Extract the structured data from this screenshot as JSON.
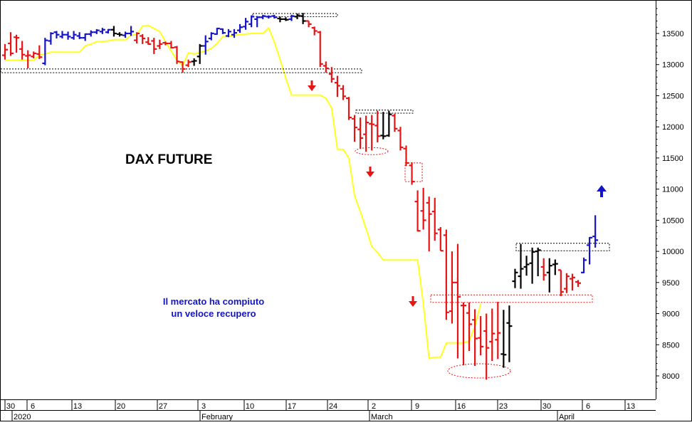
{
  "chart_data": {
    "type": "bar",
    "subtype": "ohlc",
    "title": "DAX FUTURE",
    "annotation": "Il mercato ha compiuto\nun veloce recupero",
    "y_axis": {
      "position": "right",
      "ylim": [
        7700,
        14650
      ],
      "ticks": [
        8000,
        8500,
        9000,
        9500,
        10000,
        10500,
        11000,
        11500,
        12000,
        12500,
        13000,
        13500
      ]
    },
    "x_axis": {
      "day_ticks": [
        "30",
        "6",
        "13",
        "20",
        "27",
        "3",
        "10",
        "17",
        "24",
        "2",
        "9",
        "16",
        "23",
        "30",
        "6",
        "13"
      ],
      "month_labels": [
        "2020",
        "February",
        "March",
        "April"
      ]
    },
    "grid": false,
    "colors": {
      "up": "#1414c8",
      "down": "#e81414",
      "neutral": "#000000",
      "trailing_stop": "#ffff20",
      "arrow_down": "#e81414",
      "arrow_up": "#1414c8"
    },
    "trailing_stop": [
      13070,
      13070,
      13070,
      13070,
      13070,
      13070,
      13150,
      13170,
      13200,
      13200,
      13200,
      13200,
      13200,
      13200,
      13300,
      13330,
      13370,
      13370,
      13380,
      13400,
      13400,
      13400,
      13470,
      13480,
      13620,
      13630,
      13580,
      13530,
      13370,
      13220,
      13070,
      12980,
      13190,
      13170,
      13190,
      13220,
      13260,
      13340,
      13450,
      13450,
      13470,
      13480,
      13490,
      13500,
      13500,
      13500,
      13590,
      13360,
      13080,
      12780,
      12510,
      12510,
      12510,
      12510,
      12510,
      12510,
      12460,
      12300,
      11640,
      11640,
      11500,
      10890,
      10640,
      10360,
      10080,
      9980,
      9860,
      9860,
      9860,
      9860,
      9860,
      9860,
      9860,
      9150,
      8280,
      8300,
      8300,
      8530,
      8530,
      8530,
      8530,
      8560,
      8800,
      9160
    ],
    "bars": [
      {
        "open": 13150,
        "high": 13330,
        "low": 13080,
        "close": 13240,
        "color": "down"
      },
      {
        "open": 13340,
        "high": 13520,
        "low": 13140,
        "close": 13180,
        "color": "down"
      },
      {
        "open": 13440,
        "high": 13480,
        "low": 13190,
        "close": 13430,
        "color": "down"
      },
      {
        "open": 13250,
        "high": 13380,
        "low": 13080,
        "close": 13160,
        "color": "down"
      },
      {
        "open": 13140,
        "high": 13230,
        "low": 12940,
        "close": 13150,
        "color": "down"
      },
      {
        "open": 13130,
        "high": 13210,
        "low": 13100,
        "close": 13180,
        "color": "down"
      },
      {
        "open": 13170,
        "high": 13310,
        "low": 13090,
        "close": 13120,
        "color": "down"
      },
      {
        "open": 13020,
        "high": 13430,
        "low": 12990,
        "close": 13390,
        "color": "up"
      },
      {
        "open": 13380,
        "high": 13520,
        "low": 13320,
        "close": 13500,
        "color": "up"
      },
      {
        "open": 13520,
        "high": 13540,
        "low": 13420,
        "close": 13480,
        "color": "up"
      },
      {
        "open": 13450,
        "high": 13540,
        "low": 13420,
        "close": 13480,
        "color": "up"
      },
      {
        "open": 13480,
        "high": 13530,
        "low": 13400,
        "close": 13450,
        "color": "up"
      },
      {
        "open": 13430,
        "high": 13540,
        "low": 13400,
        "close": 13480,
        "color": "up"
      },
      {
        "open": 13460,
        "high": 13520,
        "low": 13410,
        "close": 13430,
        "color": "up"
      },
      {
        "open": 13430,
        "high": 13500,
        "low": 13380,
        "close": 13490,
        "color": "up"
      },
      {
        "open": 13490,
        "high": 13550,
        "low": 13450,
        "close": 13520,
        "color": "up"
      },
      {
        "open": 13520,
        "high": 13570,
        "low": 13490,
        "close": 13550,
        "color": "up"
      },
      {
        "open": 13530,
        "high": 13590,
        "low": 13490,
        "close": 13560,
        "color": "up"
      },
      {
        "open": 13520,
        "high": 13570,
        "low": 13500,
        "close": 13560,
        "color": "up"
      },
      {
        "open": 13560,
        "high": 13620,
        "low": 13450,
        "close": 13500,
        "color": "neutral"
      },
      {
        "open": 13490,
        "high": 13520,
        "low": 13450,
        "close": 13480,
        "color": "neutral"
      },
      {
        "open": 13470,
        "high": 13530,
        "low": 13430,
        "close": 13500,
        "color": "up"
      },
      {
        "open": 13500,
        "high": 13620,
        "low": 13460,
        "close": 13530,
        "color": "up"
      },
      {
        "open": 13390,
        "high": 13520,
        "low": 13340,
        "close": 13500,
        "color": "down"
      },
      {
        "open": 13460,
        "high": 13490,
        "low": 13330,
        "close": 13420,
        "color": "down"
      },
      {
        "open": 13360,
        "high": 13440,
        "low": 13320,
        "close": 13330,
        "color": "down"
      },
      {
        "open": 13380,
        "high": 13430,
        "low": 13170,
        "close": 13250,
        "color": "down"
      },
      {
        "open": 13300,
        "high": 13400,
        "low": 13250,
        "close": 13330,
        "color": "down"
      },
      {
        "open": 13350,
        "high": 13370,
        "low": 13310,
        "close": 13340,
        "color": "down"
      },
      {
        "open": 13340,
        "high": 13380,
        "low": 13260,
        "close": 13270,
        "color": "down"
      },
      {
        "open": 13280,
        "high": 13300,
        "low": 13010,
        "close": 13050,
        "color": "down"
      },
      {
        "open": 13040,
        "high": 13050,
        "low": 12870,
        "close": 12930,
        "color": "down"
      },
      {
        "open": 12990,
        "high": 13080,
        "low": 12960,
        "close": 13040,
        "color": "down"
      },
      {
        "open": 13050,
        "high": 13100,
        "low": 12980,
        "close": 13060,
        "color": "neutral"
      },
      {
        "open": 13130,
        "high": 13330,
        "low": 13010,
        "close": 13300,
        "color": "neutral"
      },
      {
        "open": 13300,
        "high": 13470,
        "low": 13160,
        "close": 13370,
        "color": "up"
      },
      {
        "open": 13420,
        "high": 13520,
        "low": 13390,
        "close": 13500,
        "color": "up"
      },
      {
        "open": 13490,
        "high": 13590,
        "low": 13480,
        "close": 13580,
        "color": "up"
      },
      {
        "open": 13570,
        "high": 13580,
        "low": 13490,
        "close": 13510,
        "color": "up"
      },
      {
        "open": 13460,
        "high": 13570,
        "low": 13440,
        "close": 13530,
        "color": "up"
      },
      {
        "open": 13480,
        "high": 13570,
        "low": 13430,
        "close": 13510,
        "color": "up"
      },
      {
        "open": 13550,
        "high": 13650,
        "low": 13510,
        "close": 13600,
        "color": "up"
      },
      {
        "open": 13610,
        "high": 13750,
        "low": 13560,
        "close": 13690,
        "color": "up"
      },
      {
        "open": 13650,
        "high": 13790,
        "low": 13600,
        "close": 13770,
        "color": "up"
      },
      {
        "open": 13730,
        "high": 13780,
        "low": 13600,
        "close": 13760,
        "color": "up"
      },
      {
        "open": 13760,
        "high": 13800,
        "low": 13730,
        "close": 13780,
        "color": "up"
      },
      {
        "open": 13770,
        "high": 13790,
        "low": 13740,
        "close": 13770,
        "color": "up"
      },
      {
        "open": 13780,
        "high": 13800,
        "low": 13740,
        "close": 13760,
        "color": "up"
      },
      {
        "open": 13740,
        "high": 13770,
        "low": 13680,
        "close": 13730,
        "color": "neutral"
      },
      {
        "open": 13730,
        "high": 13760,
        "low": 13700,
        "close": 13720,
        "color": "neutral"
      },
      {
        "open": 13730,
        "high": 13800,
        "low": 13700,
        "close": 13780,
        "color": "up"
      },
      {
        "open": 13770,
        "high": 13820,
        "low": 13730,
        "close": 13790,
        "color": "neutral"
      },
      {
        "open": 13780,
        "high": 13830,
        "low": 13650,
        "close": 13700,
        "color": "neutral"
      },
      {
        "open": 13700,
        "high": 13700,
        "low": 13600,
        "close": 13650,
        "color": "down"
      },
      {
        "open": 13590,
        "high": 13610,
        "low": 13470,
        "close": 13540,
        "color": "down"
      },
      {
        "open": 13520,
        "high": 13540,
        "low": 12960,
        "close": 13010,
        "color": "down"
      },
      {
        "open": 12980,
        "high": 13050,
        "low": 12870,
        "close": 12940,
        "color": "down"
      },
      {
        "open": 12850,
        "high": 12960,
        "low": 12710,
        "close": 12770,
        "color": "down"
      },
      {
        "open": 12710,
        "high": 12820,
        "low": 12480,
        "close": 12660,
        "color": "down"
      },
      {
        "open": 12610,
        "high": 12670,
        "low": 12430,
        "close": 12490,
        "color": "down"
      },
      {
        "open": 12460,
        "high": 12480,
        "low": 12110,
        "close": 12150,
        "color": "down"
      },
      {
        "open": 12130,
        "high": 12190,
        "low": 11760,
        "close": 11990,
        "color": "down"
      },
      {
        "open": 11960,
        "high": 12150,
        "low": 11650,
        "close": 11820,
        "color": "down"
      },
      {
        "open": 11880,
        "high": 12180,
        "low": 11600,
        "close": 12070,
        "color": "down"
      },
      {
        "open": 12050,
        "high": 12190,
        "low": 11620,
        "close": 12040,
        "color": "down"
      },
      {
        "open": 12020,
        "high": 12260,
        "low": 11750,
        "close": 11850,
        "color": "down"
      },
      {
        "open": 11860,
        "high": 12240,
        "low": 11800,
        "close": 11850,
        "color": "neutral"
      },
      {
        "open": 11860,
        "high": 12260,
        "low": 11840,
        "close": 12200,
        "color": "neutral"
      },
      {
        "open": 12180,
        "high": 12210,
        "low": 11920,
        "close": 11970,
        "color": "down"
      },
      {
        "open": 11940,
        "high": 12000,
        "low": 11620,
        "close": 11670,
        "color": "down"
      },
      {
        "open": 11650,
        "high": 11700,
        "low": 11370,
        "close": 11420,
        "color": "down"
      },
      {
        "open": 11380,
        "high": 11430,
        "low": 11070,
        "close": 11120,
        "color": "down"
      },
      {
        "open": 10800,
        "high": 10980,
        "low": 10320,
        "close": 10330,
        "color": "down"
      },
      {
        "open": 10650,
        "high": 11020,
        "low": 10350,
        "close": 10500,
        "color": "down"
      },
      {
        "open": 10780,
        "high": 10880,
        "low": 10000,
        "close": 10600,
        "color": "down"
      },
      {
        "open": 10640,
        "high": 10860,
        "low": 10170,
        "close": 10290,
        "color": "down"
      },
      {
        "open": 10350,
        "high": 10390,
        "low": 10010,
        "close": 10010,
        "color": "down"
      },
      {
        "open": 10260,
        "high": 10350,
        "low": 8900,
        "close": 9020,
        "color": "down"
      },
      {
        "open": 9040,
        "high": 10000,
        "low": 8840,
        "close": 9500,
        "color": "down"
      },
      {
        "open": 9500,
        "high": 10120,
        "low": 8280,
        "close": 9270,
        "color": "down"
      },
      {
        "open": 9130,
        "high": 9180,
        "low": 8170,
        "close": 9130,
        "color": "down"
      },
      {
        "open": 9010,
        "high": 9180,
        "low": 8400,
        "close": 8830,
        "color": "down"
      },
      {
        "open": 8900,
        "high": 9070,
        "low": 8160,
        "close": 8600,
        "color": "down"
      },
      {
        "open": 8610,
        "high": 8960,
        "low": 8330,
        "close": 8470,
        "color": "down"
      },
      {
        "open": 8720,
        "high": 9000,
        "low": 7940,
        "close": 8450,
        "color": "down"
      },
      {
        "open": 8550,
        "high": 9080,
        "low": 8240,
        "close": 8680,
        "color": "down"
      },
      {
        "open": 8580,
        "high": 9190,
        "low": 8270,
        "close": 8690,
        "color": "down"
      },
      {
        "open": 8350,
        "high": 9060,
        "low": 8130,
        "close": 8340,
        "color": "neutral"
      },
      {
        "open": 8850,
        "high": 9130,
        "low": 8220,
        "close": 8800,
        "color": "neutral"
      },
      {
        "open": 9520,
        "high": 9720,
        "low": 9410,
        "close": 9660,
        "color": "neutral"
      },
      {
        "open": 9600,
        "high": 10120,
        "low": 9400,
        "close": 9720,
        "color": "neutral"
      },
      {
        "open": 9750,
        "high": 9930,
        "low": 9610,
        "close": 9790,
        "color": "neutral"
      },
      {
        "open": 9810,
        "high": 10060,
        "low": 9480,
        "close": 9990,
        "color": "neutral"
      },
      {
        "open": 10000,
        "high": 10060,
        "low": 9600,
        "close": 10020,
        "color": "neutral"
      },
      {
        "open": 9750,
        "high": 9890,
        "low": 9530,
        "close": 9620,
        "color": "down"
      },
      {
        "open": 9660,
        "high": 9890,
        "low": 9340,
        "close": 9770,
        "color": "neutral"
      },
      {
        "open": 9790,
        "high": 9870,
        "low": 9620,
        "close": 9800,
        "color": "neutral"
      },
      {
        "open": 9700,
        "high": 9700,
        "low": 9280,
        "close": 9350,
        "color": "down"
      },
      {
        "open": 9400,
        "high": 9650,
        "low": 9330,
        "close": 9600,
        "color": "down"
      },
      {
        "open": 9560,
        "high": 9640,
        "low": 9370,
        "close": 9580,
        "color": "down"
      },
      {
        "open": 9510,
        "high": 9540,
        "low": 9430,
        "close": 9490,
        "color": "down"
      },
      {
        "open": 9660,
        "high": 9900,
        "low": 9650,
        "close": 9860,
        "color": "up"
      },
      {
        "open": 10100,
        "high": 10230,
        "low": 9790,
        "close": 10220,
        "color": "up"
      },
      {
        "open": 10240,
        "high": 10580,
        "low": 10060,
        "close": 10180,
        "color": "up"
      }
    ]
  }
}
